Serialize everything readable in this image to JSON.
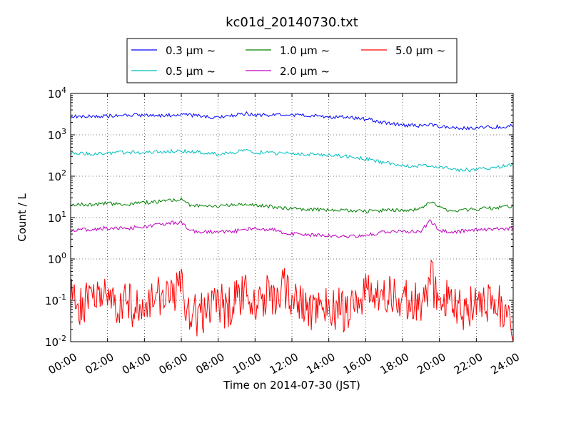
{
  "chart_data": {
    "type": "line",
    "title": "kc01d_20140730.txt",
    "xlabel": "Time on 2014-07-30 (JST)",
    "ylabel": "Count / L",
    "x_ticks": [
      "00:00",
      "02:00",
      "04:00",
      "06:00",
      "08:00",
      "10:00",
      "12:00",
      "14:00",
      "16:00",
      "18:00",
      "20:00",
      "22:00",
      "24:00"
    ],
    "y_ticks": [
      {
        "base": "10",
        "exp": "-2",
        "value": 0.01
      },
      {
        "base": "10",
        "exp": "-1",
        "value": 0.1
      },
      {
        "base": "10",
        "exp": "0",
        "value": 1
      },
      {
        "base": "10",
        "exp": "1",
        "value": 10
      },
      {
        "base": "10",
        "exp": "2",
        "value": 100
      },
      {
        "base": "10",
        "exp": "3",
        "value": 1000
      },
      {
        "base": "10",
        "exp": "4",
        "value": 10000
      }
    ],
    "x_range_hours": [
      0,
      24
    ],
    "ylim": [
      0.01,
      10000
    ],
    "y_scale": "log",
    "grid": true,
    "legend_position": "top-center",
    "series": [
      {
        "name": "0.3 μm ~",
        "color": "#0000ff",
        "x": [
          0,
          1,
          2,
          3,
          4,
          5,
          6,
          7,
          8,
          9,
          9.5,
          10,
          11,
          12,
          13,
          14,
          15,
          16,
          17,
          18,
          19,
          19.5,
          20,
          20.5,
          21,
          22,
          23,
          24
        ],
        "values": [
          2800,
          2750,
          2850,
          2950,
          2950,
          2950,
          3000,
          2900,
          2550,
          3000,
          3300,
          3050,
          2950,
          3000,
          2900,
          2750,
          2650,
          2400,
          2000,
          1700,
          1650,
          1750,
          1600,
          1550,
          1450,
          1450,
          1550,
          1650
        ]
      },
      {
        "name": "0.5 μm ~",
        "color": "#00bfbf",
        "x": [
          0,
          1,
          2,
          3,
          4,
          5,
          6,
          7,
          8,
          9,
          9.5,
          10,
          11,
          12,
          13,
          14,
          15,
          16,
          17,
          18,
          19,
          19.5,
          20,
          20.5,
          21,
          22,
          23,
          24
        ],
        "values": [
          350,
          350,
          365,
          380,
          380,
          390,
          410,
          380,
          330,
          380,
          430,
          380,
          360,
          355,
          335,
          320,
          300,
          260,
          215,
          180,
          175,
          185,
          170,
          160,
          140,
          145,
          165,
          190
        ]
      },
      {
        "name": "1.0 μm ~",
        "color": "#008000",
        "x": [
          0,
          1,
          2,
          3,
          4,
          5,
          5.5,
          6,
          6.5,
          7,
          8,
          9,
          10,
          11,
          12,
          13,
          14,
          15,
          16,
          17,
          18,
          19,
          19.5,
          20,
          20.5,
          21,
          22,
          23,
          24
        ],
        "values": [
          20,
          21,
          22,
          21,
          23,
          25,
          26,
          27,
          20,
          19,
          18,
          21,
          20,
          18,
          16,
          16,
          15,
          15,
          14,
          15,
          15,
          16,
          25,
          18,
          15,
          15,
          16,
          17,
          19
        ]
      },
      {
        "name": "2.0 μm ~",
        "color": "#bf00bf",
        "x": [
          0,
          1,
          2,
          3,
          4,
          5,
          5.5,
          6,
          6.5,
          7,
          8,
          9,
          10,
          11,
          12,
          13,
          14,
          15,
          16,
          17,
          18,
          19,
          19.5,
          20,
          20.5,
          21,
          22,
          23,
          24
        ],
        "values": [
          5,
          5.2,
          5.6,
          5.5,
          6,
          7,
          7.5,
          7.5,
          4.8,
          4.5,
          4.5,
          4.8,
          5.5,
          5,
          4,
          3.8,
          3.6,
          3.4,
          3.8,
          4.5,
          4.6,
          4.7,
          8.5,
          4.8,
          4.5,
          4.6,
          5,
          5.2,
          5.5
        ]
      },
      {
        "name": "5.0 μm ~",
        "color": "#ff0000",
        "x": [
          0,
          0.5,
          1,
          1.5,
          2,
          2.5,
          3,
          3.5,
          4,
          4.5,
          5,
          5.5,
          6,
          6.5,
          7,
          7.5,
          8,
          8.5,
          9,
          9.5,
          10,
          10.5,
          11,
          11.5,
          12,
          12.5,
          13,
          13.5,
          14,
          14.5,
          15,
          15.5,
          16,
          16.5,
          17,
          17.5,
          18,
          18.5,
          19,
          19.5,
          20,
          20.5,
          21,
          21.5,
          22,
          22.5,
          23,
          23.5,
          24
        ],
        "values": [
          0.1,
          0.08,
          0.12,
          0.1,
          0.11,
          0.09,
          0.1,
          0.06,
          0.12,
          0.1,
          0.13,
          0.14,
          0.2,
          0.05,
          0.04,
          0.06,
          0.08,
          0.07,
          0.1,
          0.12,
          0.09,
          0.13,
          0.12,
          0.2,
          0.1,
          0.08,
          0.05,
          0.07,
          0.09,
          0.06,
          0.05,
          0.08,
          0.15,
          0.2,
          0.12,
          0.14,
          0.1,
          0.08,
          0.09,
          0.35,
          0.1,
          0.12,
          0.05,
          0.07,
          0.06,
          0.08,
          0.1,
          0.05,
          0.02
        ]
      }
    ]
  }
}
